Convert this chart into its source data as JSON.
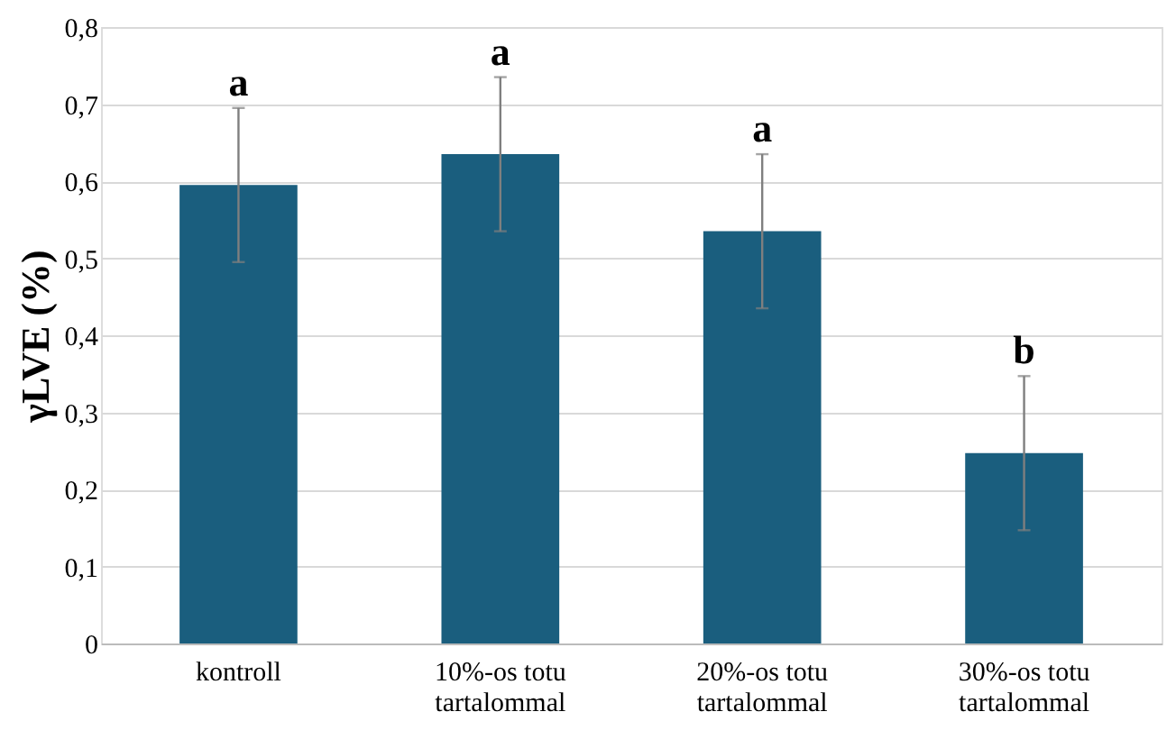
{
  "chart_data": {
    "type": "bar",
    "ylabel": "γLVE (%)",
    "categories": [
      "kontroll",
      "10%-os totu tartalommal",
      "20%-os totu tartalommal",
      "30%-os totu tartalommal"
    ],
    "values": [
      0.595,
      0.635,
      0.535,
      0.247
    ],
    "errors": [
      0.1,
      0.1,
      0.1,
      0.1
    ],
    "color": "#1a5e7e",
    "ylim": [
      0,
      0.8
    ],
    "yticks": [
      {
        "value": 0,
        "label": "0"
      },
      {
        "value": 0.1,
        "label": "0,1"
      },
      {
        "value": 0.2,
        "label": "0,2"
      },
      {
        "value": 0.3,
        "label": "0,3"
      },
      {
        "value": 0.4,
        "label": "0,4"
      },
      {
        "value": 0.5,
        "label": "0,5"
      },
      {
        "value": 0.6,
        "label": "0,6"
      },
      {
        "value": 0.7,
        "label": "0,7"
      },
      {
        "value": 0.8,
        "label": "0,8"
      }
    ],
    "grid": "y",
    "annotations": [
      {
        "text": "a",
        "x": "kontroll",
        "y": 0.695
      },
      {
        "text": "a",
        "x": "10%-os totu tartalommal",
        "y": 0.735
      },
      {
        "text": "a",
        "x": "20%-os totu tartalommal",
        "y": 0.635
      },
      {
        "text": "b",
        "x": "30%-os totu tartalommal",
        "y": 0.347
      }
    ]
  }
}
